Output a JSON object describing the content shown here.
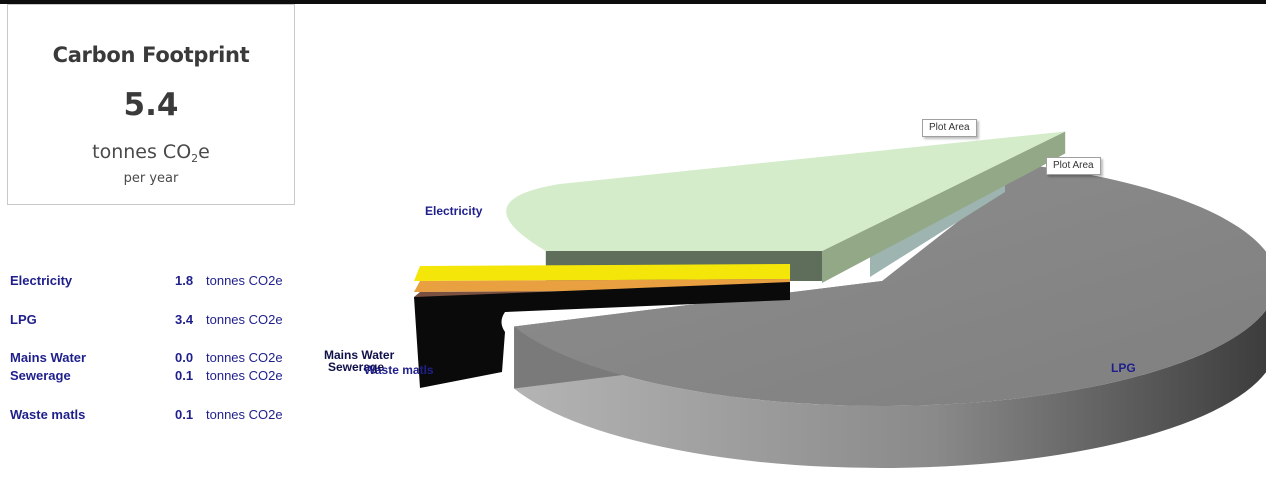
{
  "summary": {
    "title": "Carbon Footprint",
    "value": "5.4",
    "unit_prefix": "tonnes CO",
    "unit_sub": "2",
    "unit_suffix": "e",
    "period": "per year"
  },
  "breakdown": [
    {
      "name": "Electricity",
      "value": "1.8",
      "unit": "tonnes CO2e"
    },
    {
      "name": "LPG",
      "value": "3.4",
      "unit": "tonnes CO2e"
    },
    {
      "name": "Mains Water",
      "value": "0.0",
      "unit": "tonnes CO2e"
    },
    {
      "name": "Sewerage",
      "value": "0.1",
      "unit": "tonnes CO2e"
    },
    {
      "name": "Waste matls",
      "value": "0.1",
      "unit": "tonnes CO2e"
    }
  ],
  "tooltips": [
    "Plot Area",
    "Plot Area"
  ],
  "chart_data": {
    "type": "pie",
    "style": "3d-exploded",
    "unit": "tonnes CO2e",
    "categories": [
      "Electricity",
      "LPG",
      "Mains Water",
      "Sewerage",
      "Waste matls"
    ],
    "values": [
      1.8,
      3.4,
      0.0,
      0.1,
      0.1
    ],
    "labels": [
      "Electricity",
      "LPG",
      "Mains Water",
      "Sewerage",
      "Waste matls"
    ],
    "colors": {
      "Electricity": "#d4ecca",
      "LPG": "#8c8c8c",
      "Mains Water": "#f5e60a",
      "Sewerage": "#e8a040",
      "Waste matls": "#0a0a0a",
      "accent_thin": "#7a5040",
      "gap_panel": "#9eb4b0"
    }
  }
}
